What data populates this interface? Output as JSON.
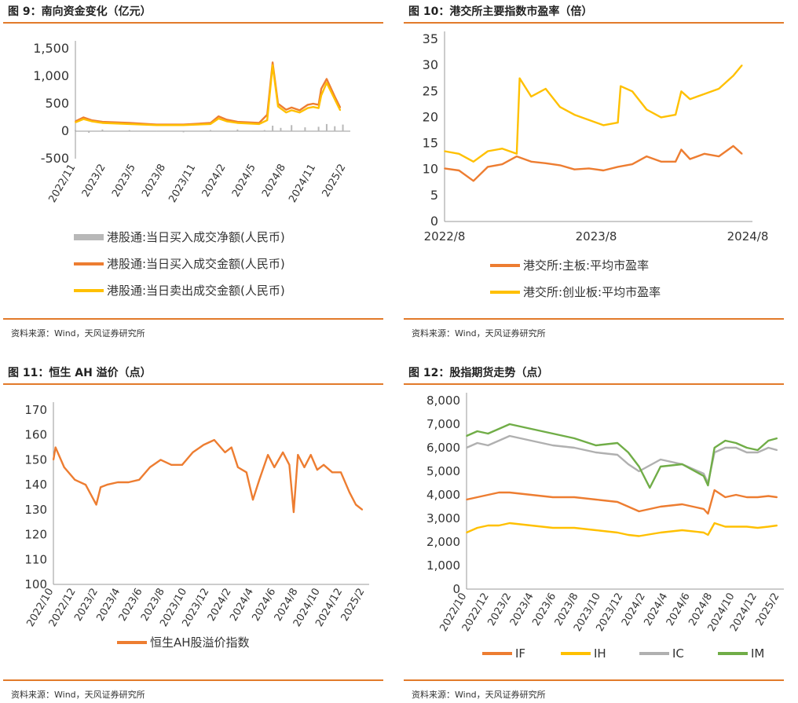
{
  "figures": [
    {
      "title": "图 9：南向资金变化（亿元）",
      "source": "资料来源：Wind，天风证券研究所"
    },
    {
      "title": "图 10：港交所主要指数市盈率（倍）",
      "source": "资料来源：Wind，天风证券研究所"
    },
    {
      "title": "图 11：恒生 AH 溢价（点）",
      "source": "资料来源：Wind，天风证券研究所"
    },
    {
      "title": "图 12：股指期货走势（点）",
      "source": "资料来源：Wind，天风证券研究所"
    }
  ],
  "chart_data": [
    {
      "type": "line",
      "title": "图 9：南向资金变化（亿元）",
      "yticks": [
        "1,500",
        "1,000",
        "500",
        "0",
        "-500"
      ],
      "ylim": [
        -500,
        1500
      ],
      "xticks": [
        "2022/11",
        "2023/2",
        "2023/5",
        "2023/8",
        "2023/11",
        "2024/2",
        "2024/5",
        "2024/8",
        "2024/11",
        "2025/2"
      ],
      "legend_position": "bottom",
      "series": [
        {
          "name": "港股通:当日买入成交净额(人民币)",
          "color": "#b8b8b8",
          "kind": "bar",
          "x": [
            0,
            0.5,
            1,
            2,
            3,
            4,
            5,
            6,
            6.5,
            7,
            7.3,
            7.6,
            8,
            8.5,
            9,
            9.3,
            9.6,
            9.9
          ],
          "values": [
            20,
            -30,
            30,
            20,
            10,
            -20,
            20,
            30,
            -10,
            20,
            100,
            60,
            110,
            70,
            80,
            130,
            90,
            120
          ]
        },
        {
          "name": "港股通:当日买入成交金额(人民币)",
          "color": "#ed7d31",
          "kind": "line",
          "x": [
            0,
            0.3,
            0.6,
            1,
            2,
            3,
            4,
            5,
            5.3,
            5.6,
            6,
            6.8,
            7.1,
            7.3,
            7.5,
            7.8,
            8,
            8.3,
            8.6,
            8.8,
            9,
            9.1,
            9.3,
            9.6,
            9.8
          ],
          "values": [
            180,
            250,
            200,
            170,
            150,
            120,
            120,
            150,
            270,
            210,
            170,
            150,
            300,
            1250,
            500,
            390,
            430,
            380,
            480,
            500,
            480,
            770,
            950,
            630,
            430
          ]
        },
        {
          "name": "港股通:当日卖出成交金额(人民币)",
          "color": "#ffc000",
          "kind": "line",
          "x": [
            0,
            0.3,
            0.6,
            1,
            2,
            3,
            4,
            5,
            5.3,
            5.6,
            6,
            6.8,
            7.1,
            7.3,
            7.5,
            7.8,
            8,
            8.3,
            8.6,
            8.8,
            9,
            9.1,
            9.3,
            9.6,
            9.8
          ],
          "values": [
            160,
            220,
            180,
            150,
            130,
            110,
            110,
            130,
            230,
            180,
            150,
            130,
            200,
            1200,
            450,
            340,
            380,
            340,
            420,
            440,
            420,
            650,
            880,
            580,
            380
          ]
        }
      ]
    },
    {
      "type": "line",
      "title": "图 10：港交所主要指数市盈率（倍）",
      "ylim": [
        0,
        35
      ],
      "yticks": [
        "35",
        "30",
        "25",
        "20",
        "15",
        "10",
        "5",
        "0"
      ],
      "xticks": [
        "2022/8",
        "2023/8",
        "2024/8"
      ],
      "legend_position": "bottom",
      "series": [
        {
          "name": "港交所:主板:平均市盈率",
          "color": "#ed7d31",
          "x": [
            0,
            0.05,
            0.1,
            0.15,
            0.2,
            0.25,
            0.3,
            0.35,
            0.4,
            0.45,
            0.5,
            0.55,
            0.6,
            0.65,
            0.7,
            0.75,
            0.8,
            0.82,
            0.85,
            0.9,
            0.95,
            1.0,
            1.03
          ],
          "values": [
            10.2,
            9.8,
            7.8,
            10.5,
            11.0,
            12.5,
            11.5,
            11.2,
            10.8,
            10.0,
            10.2,
            9.8,
            10.5,
            11.0,
            12.5,
            11.5,
            11.5,
            13.8,
            12.0,
            13.0,
            12.5,
            14.5,
            13.0
          ]
        },
        {
          "name": "港交所:创业板:平均市盈率",
          "color": "#ffc000",
          "x": [
            0,
            0.05,
            0.1,
            0.15,
            0.2,
            0.25,
            0.26,
            0.3,
            0.35,
            0.4,
            0.45,
            0.5,
            0.55,
            0.6,
            0.61,
            0.65,
            0.7,
            0.75,
            0.8,
            0.82,
            0.85,
            0.9,
            0.95,
            1.0,
            1.03
          ],
          "values": [
            13.5,
            13.0,
            11.5,
            13.5,
            14.0,
            13.0,
            27.5,
            24.0,
            25.5,
            22.0,
            20.5,
            19.5,
            18.5,
            19.0,
            26.0,
            25.0,
            21.5,
            20.0,
            20.5,
            25.0,
            23.5,
            24.5,
            25.5,
            28.0,
            30.0
          ]
        }
      ]
    },
    {
      "type": "line",
      "title": "图 11：恒生 AH 溢价（点）",
      "ylim": [
        100,
        170
      ],
      "yticks": [
        "170",
        "160",
        "150",
        "140",
        "130",
        "120",
        "110",
        "100"
      ],
      "xticks": [
        "2022/10",
        "2022/12",
        "2023/2",
        "2023/4",
        "2023/6",
        "2023/8",
        "2023/10",
        "2023/12",
        "2024/2",
        "2024/4",
        "2024/6",
        "2024/8",
        "2024/10",
        "2024/12",
        "2025/2"
      ],
      "legend_position": "bottom",
      "series": [
        {
          "name": "恒生AH股溢价指数",
          "color": "#ed7d31",
          "x": [
            0,
            0.1,
            0.5,
            1,
            1.5,
            2,
            2.2,
            2.5,
            3,
            3.5,
            4,
            4.5,
            5,
            5.5,
            6,
            6.5,
            7,
            7.5,
            8,
            8.3,
            8.6,
            9,
            9.3,
            9.6,
            10,
            10.3,
            10.7,
            11,
            11.2,
            11.4,
            11.7,
            12,
            12.3,
            12.6,
            13,
            13.4,
            13.8,
            14.1,
            14.4
          ],
          "values": [
            150,
            155,
            147,
            142,
            140,
            132,
            139,
            140,
            141,
            141,
            142,
            147,
            150,
            148,
            148,
            153,
            156,
            158,
            153,
            155,
            147,
            145,
            134,
            142,
            152,
            147,
            153,
            148,
            129,
            152,
            147,
            152,
            146,
            148,
            145,
            145,
            137,
            132,
            130
          ]
        }
      ]
    },
    {
      "type": "line",
      "title": "图 12：股指期货走势（点）",
      "ylim": [
        0,
        8000
      ],
      "yticks": [
        "8,000",
        "7,000",
        "6,000",
        "5,000",
        "4,000",
        "3,000",
        "2,000",
        "1,000",
        "0"
      ],
      "xticks": [
        "2022/10",
        "2022/12",
        "2023/2",
        "2023/4",
        "2023/6",
        "2023/8",
        "2023/10",
        "2023/12",
        "2024/2",
        "2024/4",
        "2024/6",
        "2024/8",
        "2024/10",
        "2024/12",
        "2025/2"
      ],
      "legend_position": "bottom",
      "series": [
        {
          "name": "IF",
          "color": "#ed7d31",
          "x": [
            0,
            0.5,
            1,
            1.5,
            2,
            3,
            4,
            5,
            6,
            7,
            7.5,
            8,
            9,
            10,
            11,
            11.2,
            11.5,
            12,
            12.5,
            13,
            13.5,
            14,
            14.4
          ],
          "values": [
            3800,
            3900,
            4000,
            4100,
            4100,
            4000,
            3900,
            3900,
            3800,
            3700,
            3500,
            3300,
            3500,
            3600,
            3400,
            3200,
            4200,
            3900,
            4000,
            3900,
            3900,
            3950,
            3900
          ]
        },
        {
          "name": "IH",
          "color": "#ffc000",
          "x": [
            0,
            0.5,
            1,
            1.5,
            2,
            3,
            4,
            5,
            6,
            7,
            7.5,
            8,
            9,
            10,
            11,
            11.2,
            11.5,
            12,
            12.5,
            13,
            13.5,
            14,
            14.4
          ],
          "values": [
            2400,
            2600,
            2700,
            2700,
            2800,
            2700,
            2600,
            2600,
            2500,
            2400,
            2300,
            2250,
            2400,
            2500,
            2400,
            2300,
            2800,
            2650,
            2650,
            2650,
            2600,
            2650,
            2700
          ]
        },
        {
          "name": "IC",
          "color": "#b0b0b0",
          "x": [
            0,
            0.5,
            1,
            1.5,
            2,
            3,
            4,
            5,
            6,
            7,
            7.5,
            8,
            9,
            10,
            11,
            11.2,
            11.5,
            12,
            12.5,
            13,
            13.5,
            14,
            14.4
          ],
          "values": [
            6000,
            6200,
            6100,
            6300,
            6500,
            6300,
            6100,
            6000,
            5800,
            5700,
            5300,
            5000,
            5500,
            5300,
            4900,
            4500,
            5800,
            6000,
            6000,
            5800,
            5800,
            6000,
            5900
          ]
        },
        {
          "name": "IM",
          "color": "#70ad47",
          "x": [
            0,
            0.5,
            1,
            1.5,
            2,
            3,
            4,
            5,
            6,
            7,
            7.5,
            8,
            8.5,
            9,
            10,
            11,
            11.2,
            11.5,
            12,
            12.5,
            13,
            13.5,
            14,
            14.4
          ],
          "values": [
            6500,
            6700,
            6600,
            6800,
            7000,
            6800,
            6600,
            6400,
            6100,
            6200,
            5800,
            5200,
            4300,
            5200,
            5300,
            4800,
            4400,
            6000,
            6300,
            6200,
            6000,
            5900,
            6300,
            6400
          ]
        }
      ]
    }
  ]
}
